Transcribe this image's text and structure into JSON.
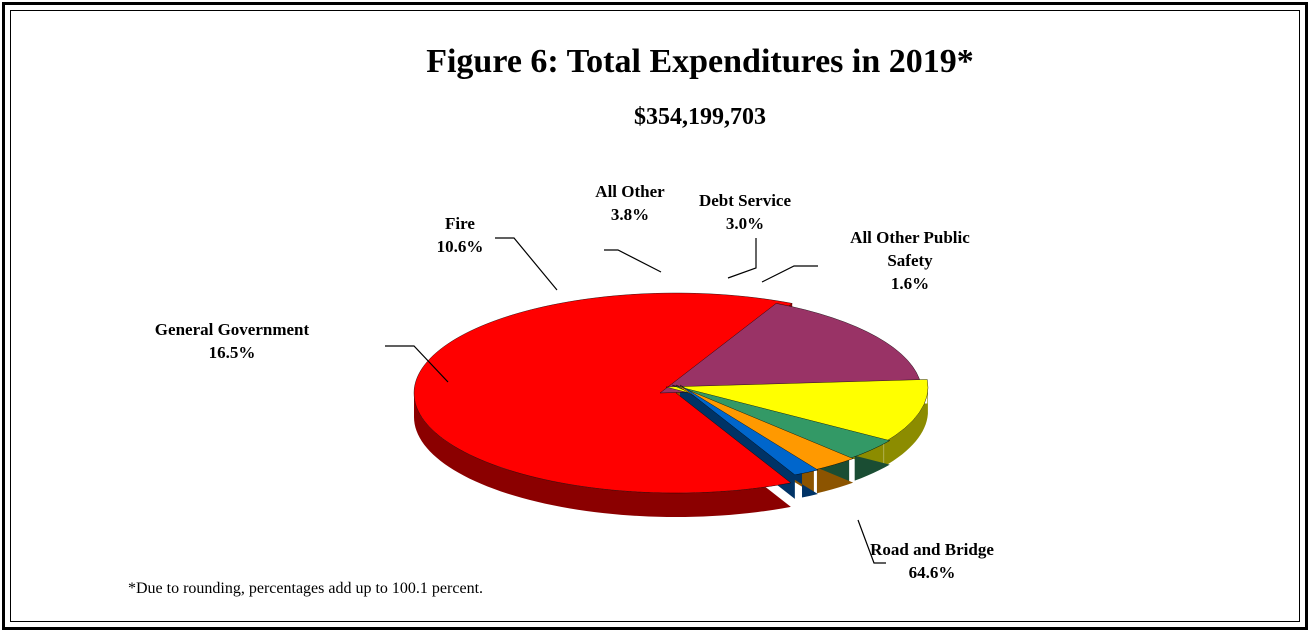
{
  "chart_data": {
    "type": "pie",
    "title": "Figure 6:  Total Expenditures in 2019*",
    "subtitle": "$354,199,703",
    "slices": [
      {
        "label": "Road and Bridge",
        "label_lines": [
          "Road and Bridge",
          "64.6%"
        ],
        "value": 64.6,
        "color": "#ff0000",
        "side_color": "#8b0000"
      },
      {
        "label": "General Government",
        "label_lines": [
          "General Government",
          "16.5%"
        ],
        "value": 16.5,
        "color": "#993366",
        "side_color": "#4d1a33"
      },
      {
        "label": "Fire",
        "label_lines": [
          "Fire",
          "10.6%"
        ],
        "value": 10.6,
        "color": "#ffff00",
        "side_color": "#8c8c00"
      },
      {
        "label": "All Other",
        "label_lines": [
          "All Other",
          "3.8%"
        ],
        "value": 3.8,
        "color": "#339966",
        "side_color": "#1a4d33"
      },
      {
        "label": "Debt Service",
        "label_lines": [
          "Debt Service",
          "3.0%"
        ],
        "value": 3.0,
        "color": "#ff9900",
        "side_color": "#8c5400"
      },
      {
        "label": "All Other Public Safety",
        "label_lines": [
          "All Other Public",
          "Safety",
          "1.6%"
        ],
        "value": 1.6,
        "color": "#0066cc",
        "side_color": "#003366"
      }
    ],
    "footnote": "*Due to rounding, percentages add up to 100.1 percent."
  }
}
